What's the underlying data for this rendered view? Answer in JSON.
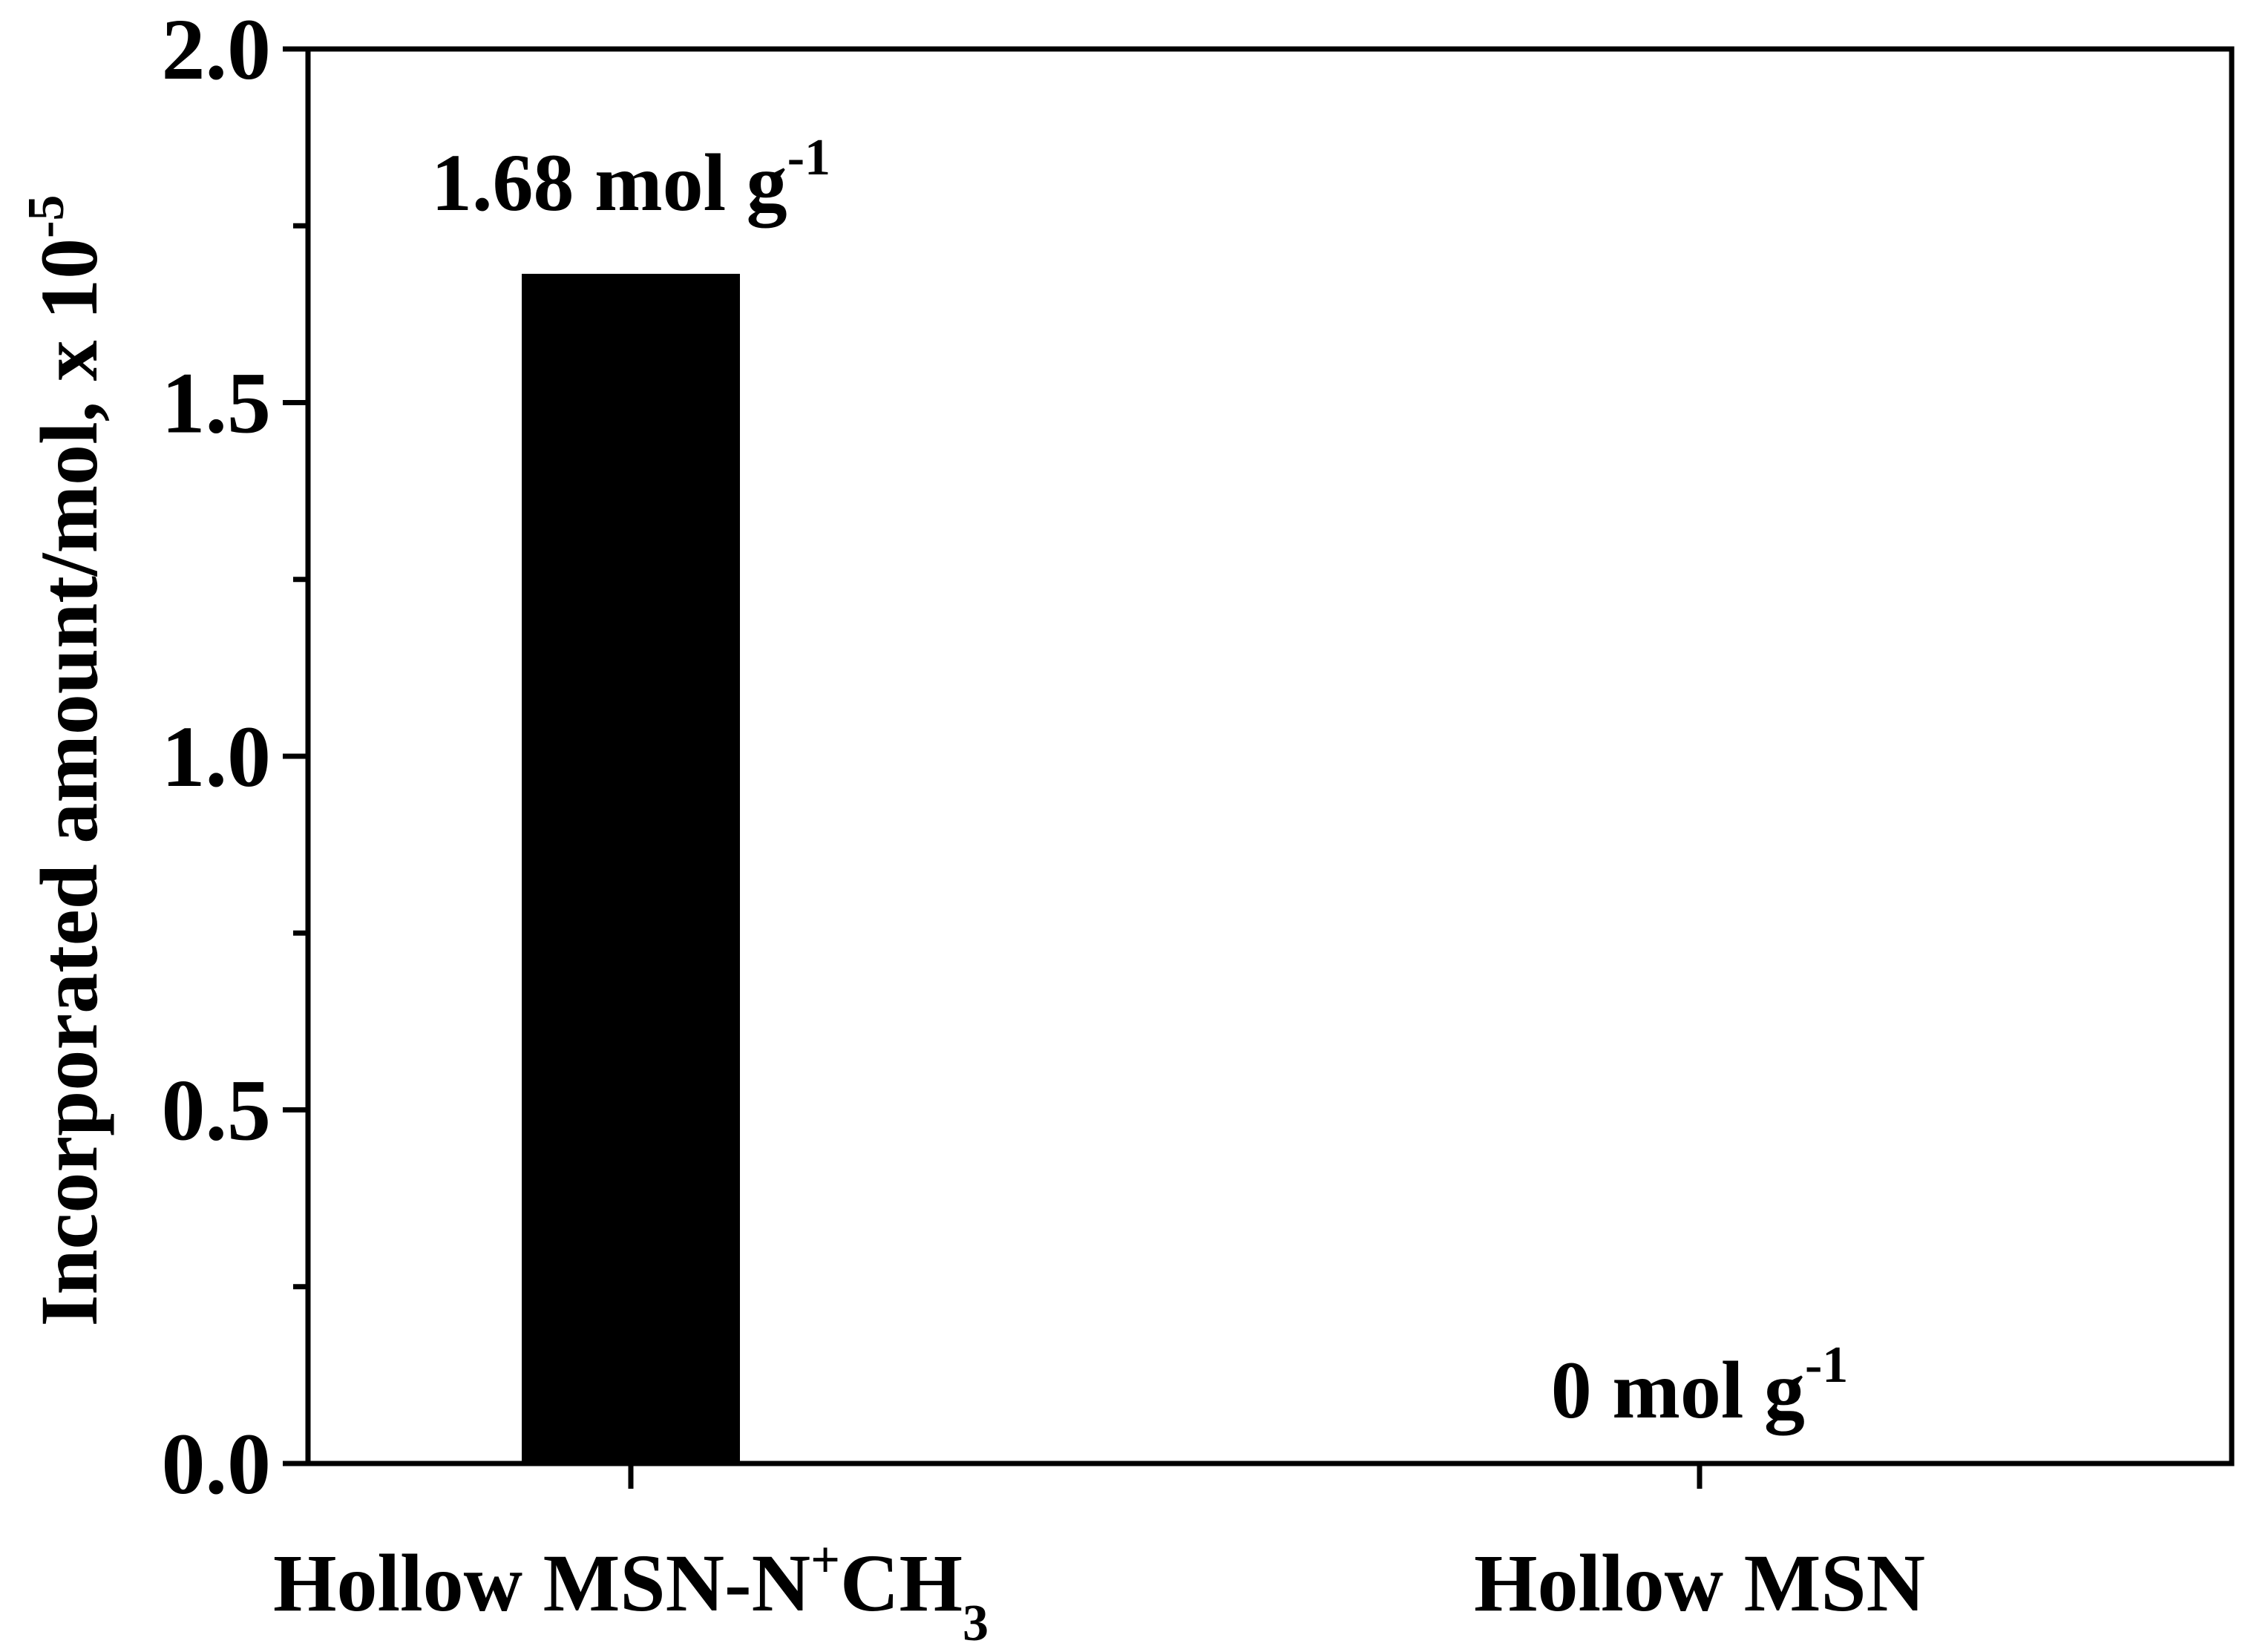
{
  "chart_data": {
    "type": "bar",
    "categories": [
      {
        "main": "Hollow MSN-N",
        "sup": "+",
        "mid": "CH",
        "sub": "3"
      },
      {
        "main": "Hollow MSN",
        "sup": "",
        "mid": "",
        "sub": ""
      }
    ],
    "values": [
      1.68,
      0
    ],
    "data_labels": [
      {
        "text": "1.68 mol g",
        "sup": "-1"
      },
      {
        "text": "0 mol g",
        "sup": "-1"
      }
    ],
    "ylabel": {
      "text": "Incorporated amount/mol, x 10",
      "sup": "-5"
    },
    "ylim": [
      0,
      2.0
    ],
    "yticks_major": [
      0.0,
      0.5,
      1.0,
      1.5,
      2.0
    ],
    "ytick_labels": [
      "0.0",
      "0.5",
      "1.0",
      "1.5",
      "2.0"
    ],
    "yticks_minor": [
      0.25,
      0.75,
      1.25,
      1.75
    ],
    "grid": false,
    "bar_color": "#000000"
  }
}
